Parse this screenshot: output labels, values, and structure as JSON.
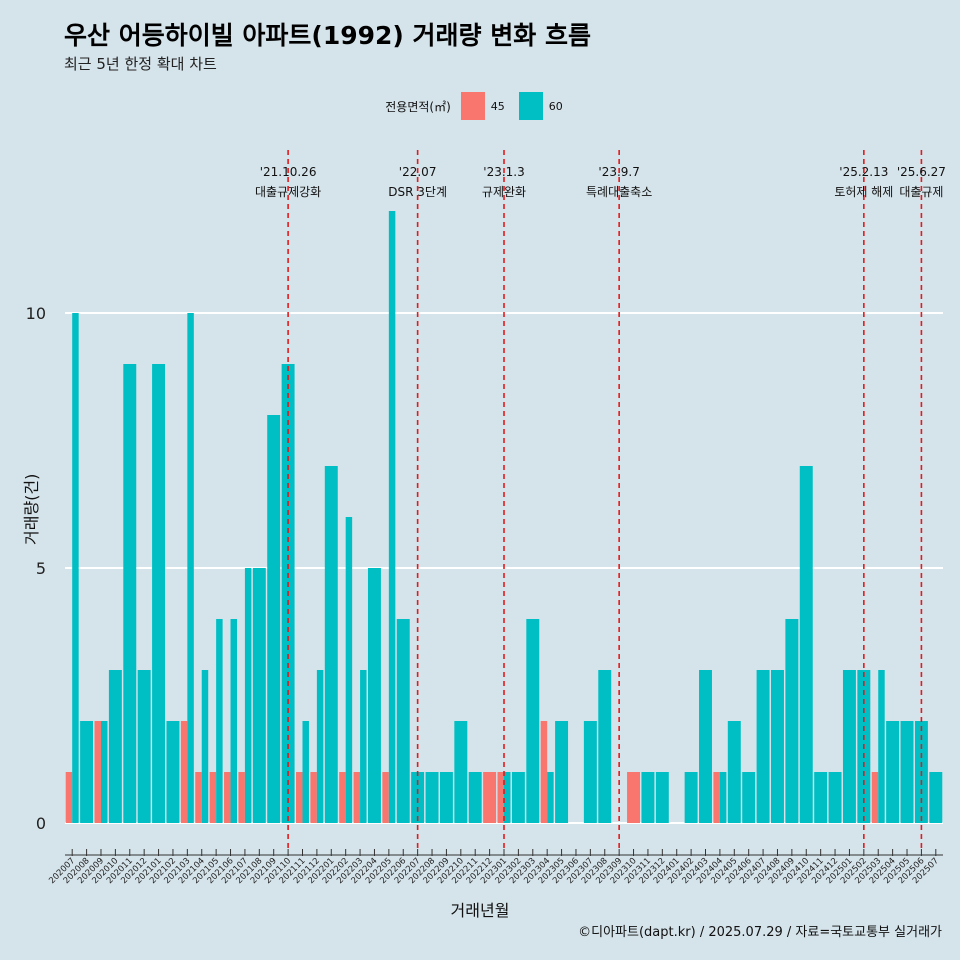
{
  "title": "우산 어등하이빌 아파트(1992) 거래량 변화 흐름",
  "subtitle": "최근 5년 한정 확대 차트",
  "caption": "©디아파트(dapt.kr) / 2025.07.29 / 자료=국토교통부 실거래가",
  "legend": {
    "title": "전용면적(㎡)",
    "items": [
      {
        "label": "45",
        "color": "#f8766d"
      },
      {
        "label": "60",
        "color": "#00bfc4"
      }
    ]
  },
  "chart_data": {
    "type": "bar",
    "stacked": false,
    "xlabel": "거래년월",
    "ylabel": "거래량(건)",
    "ylim": [
      0,
      12.5
    ],
    "yticks": [
      0,
      5,
      10
    ],
    "categories": [
      "202007",
      "202008",
      "202009",
      "202010",
      "202011",
      "202012",
      "202101",
      "202102",
      "202103",
      "202104",
      "202105",
      "202106",
      "202107",
      "202108",
      "202109",
      "202110",
      "202111",
      "202112",
      "202201",
      "202202",
      "202203",
      "202204",
      "202205",
      "202206",
      "202207",
      "202208",
      "202209",
      "202210",
      "202211",
      "202212",
      "202301",
      "202302",
      "202303",
      "202304",
      "202305",
      "202306",
      "202307",
      "202308",
      "202309",
      "202310",
      "202311",
      "202312",
      "202401",
      "202402",
      "202403",
      "202404",
      "202405",
      "202406",
      "202407",
      "202408",
      "202409",
      "202410",
      "202411",
      "202412",
      "202501",
      "202502",
      "202503",
      "202504",
      "202505",
      "202506",
      "202507"
    ],
    "series": [
      {
        "name": "45",
        "color": "#f8766d",
        "values": [
          1,
          0,
          2,
          0,
          0,
          0,
          0,
          0,
          2,
          1,
          1,
          1,
          1,
          0,
          0,
          0,
          1,
          1,
          0,
          1,
          1,
          0,
          1,
          0,
          0,
          0,
          0,
          0,
          0,
          1,
          1,
          0,
          0,
          2,
          0,
          0,
          0,
          0,
          0,
          1,
          0,
          0,
          0,
          0,
          0,
          1,
          0,
          0,
          0,
          0,
          0,
          0,
          0,
          0,
          0,
          0,
          1,
          0,
          0,
          0,
          0
        ]
      },
      {
        "name": "60",
        "color": "#00bfc4",
        "values": [
          10,
          2,
          2,
          3,
          9,
          3,
          9,
          2,
          10,
          3,
          4,
          4,
          5,
          5,
          8,
          9,
          2,
          3,
          7,
          6,
          3,
          5,
          12,
          4,
          1,
          1,
          1,
          2,
          1,
          0,
          1,
          1,
          4,
          1,
          2,
          0,
          2,
          3,
          0,
          0,
          1,
          1,
          0,
          1,
          3,
          1,
          2,
          1,
          3,
          3,
          4,
          7,
          1,
          1,
          3,
          3,
          3,
          2,
          2,
          2,
          1
        ]
      }
    ],
    "annotations": [
      {
        "date": "'21.10.26",
        "label": "대출규제강화",
        "category": "202110"
      },
      {
        "date": "'22.07",
        "label": "DSR 3단계",
        "category": "202207"
      },
      {
        "date": "'23.1.3",
        "label": "규제완화",
        "category": "202301"
      },
      {
        "date": "'23.9.7",
        "label": "특례대출축소",
        "category": "202309"
      },
      {
        "date": "'25.2.13",
        "label": "토허제 해제",
        "category": "202502"
      },
      {
        "date": "'25.6.27",
        "label": "대출규제",
        "category": "202506"
      }
    ]
  }
}
